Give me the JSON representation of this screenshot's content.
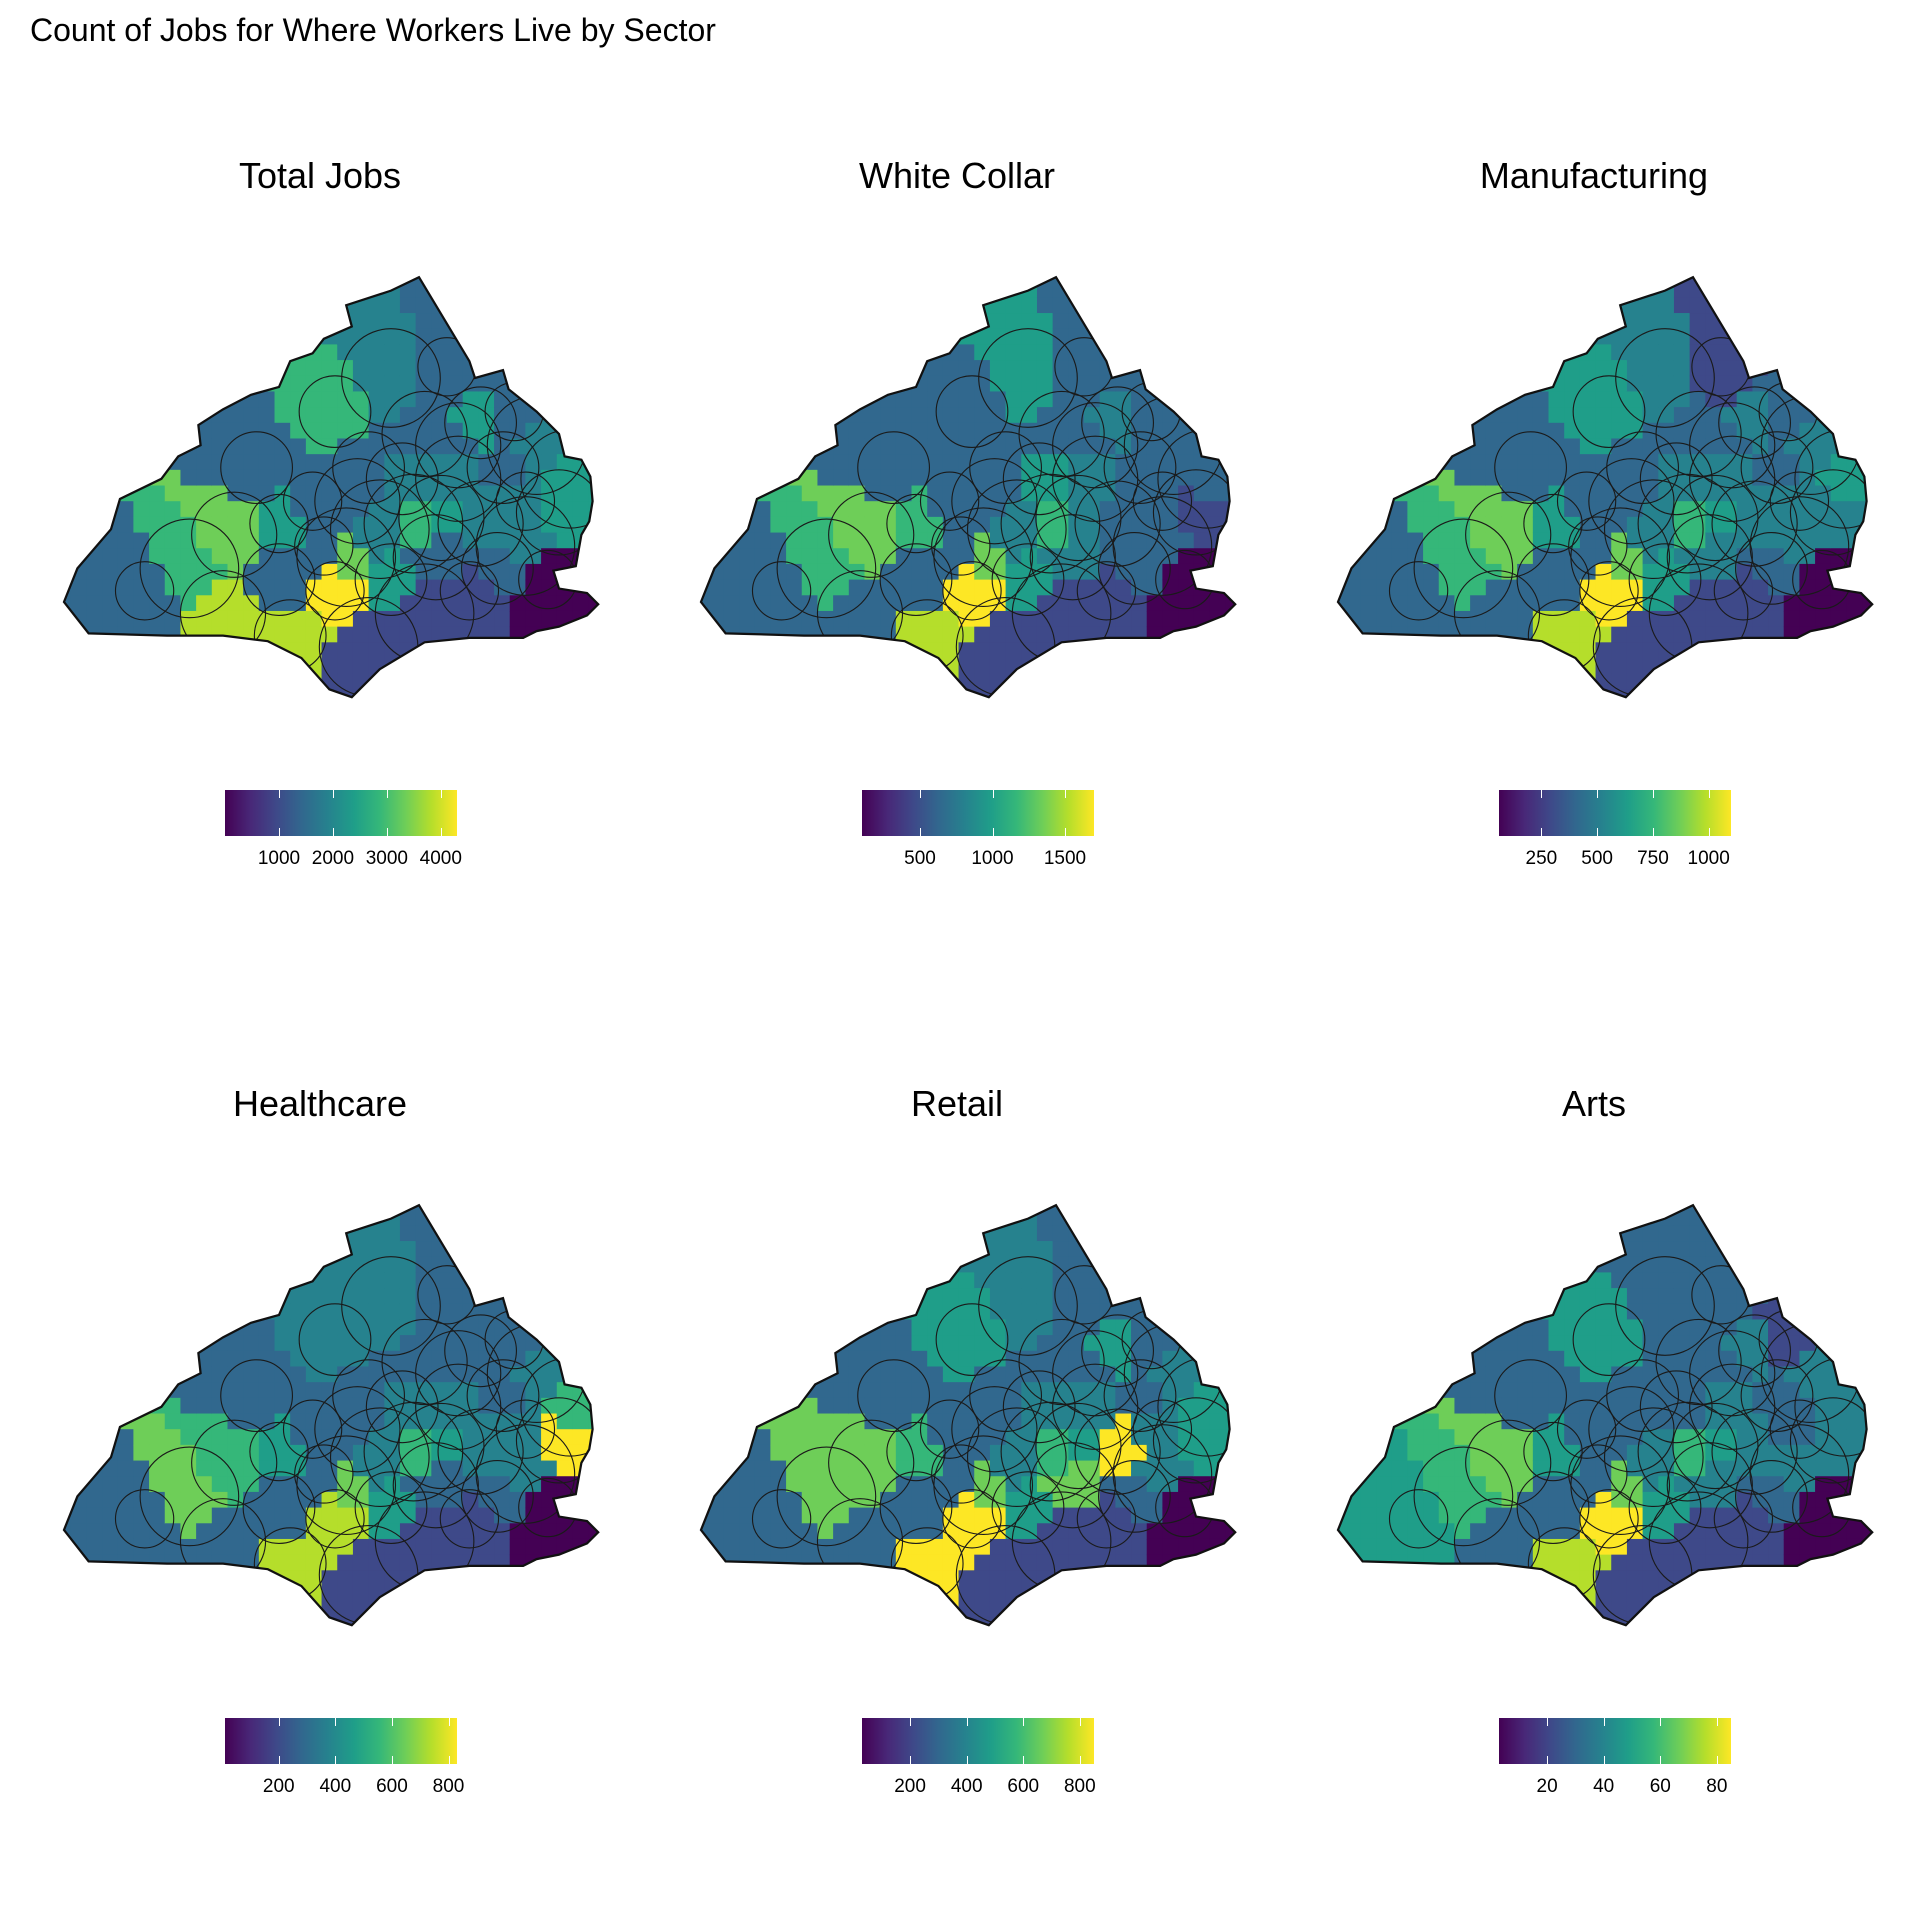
{
  "title": "Count of Jobs for Where Workers Live by Sector",
  "panels": [
    {
      "title": "Total Jobs",
      "legend_ticks": [
        "1000",
        "2000",
        "3000",
        "4000"
      ],
      "legend_range": [
        0,
        4300
      ],
      "legend_tick_values": [
        1000,
        2000,
        3000,
        4000
      ],
      "colors": {
        "lowest": "#440154",
        "highest": "#fde725"
      }
    },
    {
      "title": "White Collar",
      "legend_ticks": [
        "500",
        "1000",
        "1500"
      ],
      "legend_range": [
        100,
        1700
      ],
      "legend_tick_values": [
        500,
        1000,
        1500
      ],
      "colors": {
        "lowest": "#440154",
        "highest": "#fde725"
      }
    },
    {
      "title": "Manufacturing",
      "legend_ticks": [
        "250",
        "500",
        "750",
        "1000"
      ],
      "legend_range": [
        60,
        1100
      ],
      "legend_tick_values": [
        250,
        500,
        750,
        1000
      ],
      "colors": {
        "lowest": "#440154",
        "highest": "#fde725"
      }
    },
    {
      "title": "Healthcare",
      "legend_ticks": [
        "200",
        "400",
        "600",
        "800"
      ],
      "legend_range": [
        10,
        830
      ],
      "legend_tick_values": [
        200,
        400,
        600,
        800
      ],
      "colors": {
        "lowest": "#440154",
        "highest": "#fde725"
      }
    },
    {
      "title": "Retail",
      "legend_ticks": [
        "200",
        "400",
        "600",
        "800"
      ],
      "legend_range": [
        30,
        850
      ],
      "legend_tick_values": [
        200,
        400,
        600,
        800
      ],
      "colors": {
        "lowest": "#440154",
        "highest": "#fde725"
      }
    },
    {
      "title": "Arts",
      "legend_ticks": [
        "20",
        "40",
        "60",
        "80"
      ],
      "legend_range": [
        3,
        85
      ],
      "legend_tick_values": [
        20,
        40,
        60,
        80
      ],
      "colors": {
        "lowest": "#440154",
        "highest": "#fde725"
      }
    }
  ]
}
